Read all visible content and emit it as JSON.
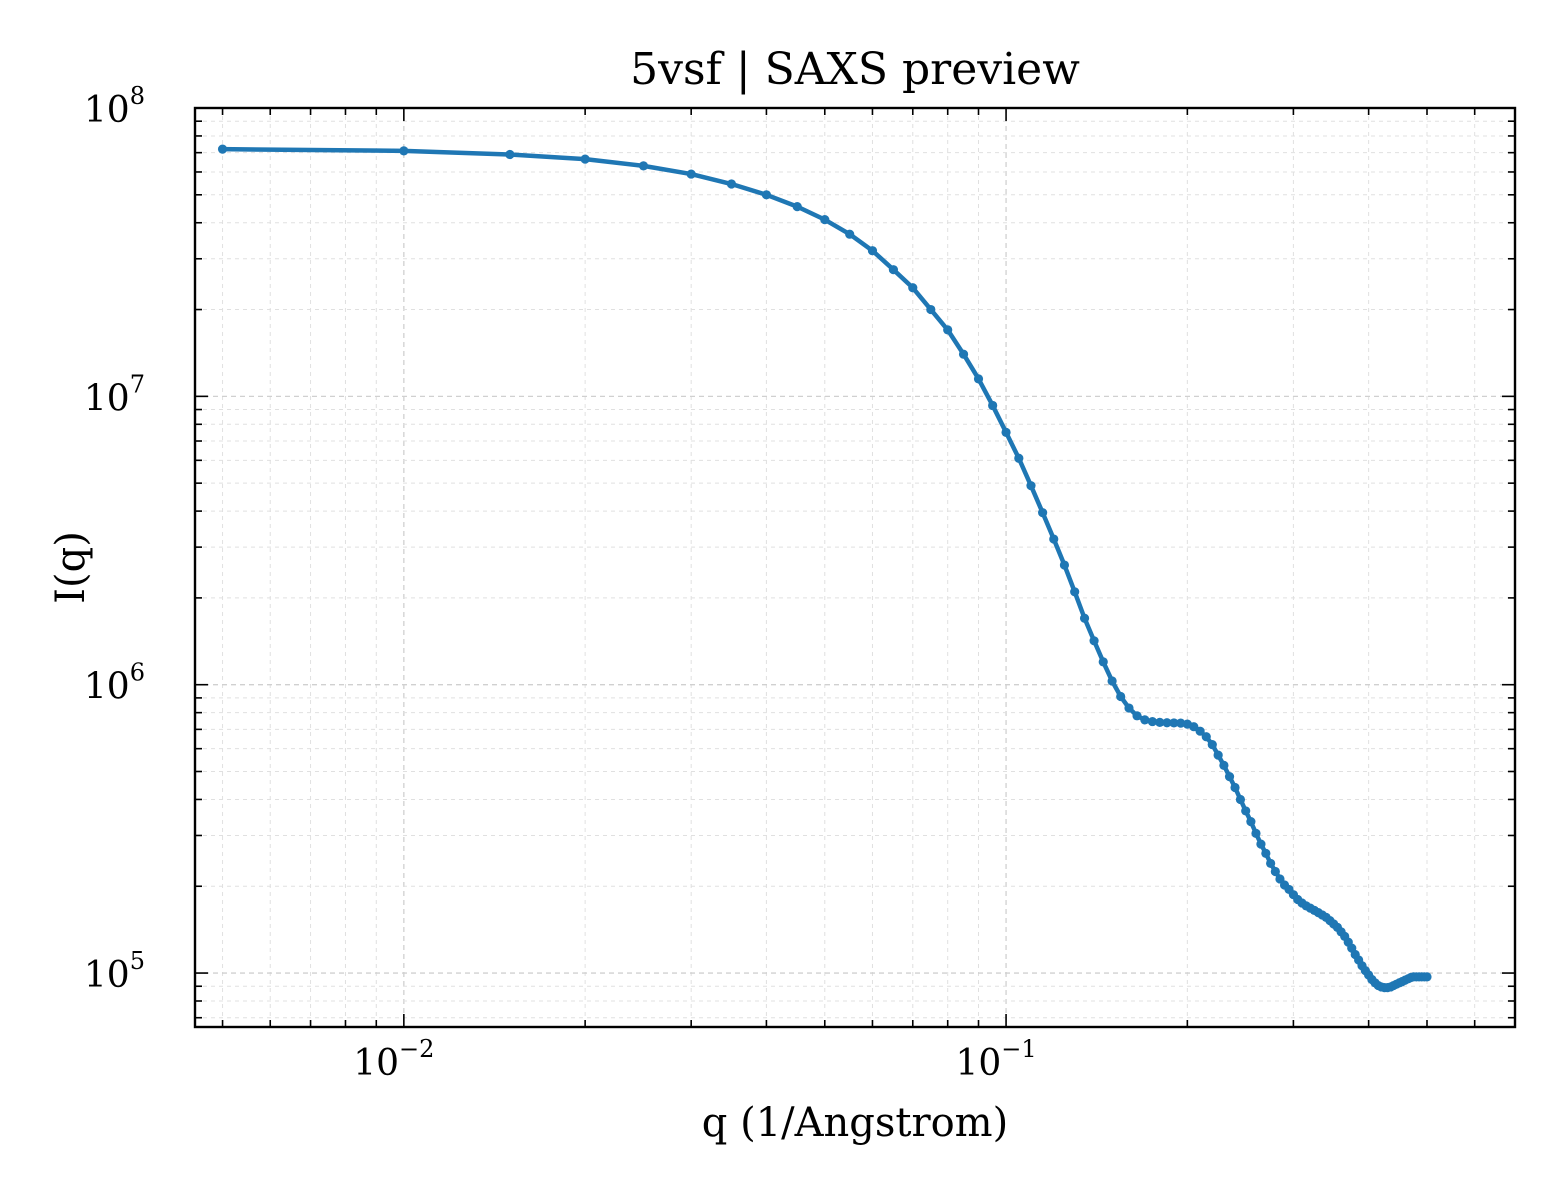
{
  "chart_data": {
    "type": "line",
    "title": "5vsf | SAXS preview",
    "xlabel": "q (1/Angstrom)",
    "ylabel": "I(q)",
    "xscale": "log",
    "yscale": "log",
    "xlim": [
      0.0045,
      0.7
    ],
    "ylim": [
      65000,
      100000000
    ],
    "grid": true,
    "legend": "none",
    "line_color": "#1f77b4",
    "x_ticks": [
      {
        "value": 0.01,
        "base": "10",
        "exp": "−2"
      },
      {
        "value": 0.1,
        "base": "10",
        "exp": "−1"
      }
    ],
    "y_ticks": [
      {
        "value": 100000,
        "base": "10",
        "exp": "5"
      },
      {
        "value": 1000000,
        "base": "10",
        "exp": "6"
      },
      {
        "value": 10000000,
        "base": "10",
        "exp": "7"
      },
      {
        "value": 100000000,
        "base": "10",
        "exp": "8"
      }
    ],
    "series": [
      {
        "x": [
          0.005,
          0.01,
          0.015,
          0.02,
          0.025,
          0.03,
          0.035,
          0.04,
          0.045,
          0.05,
          0.055,
          0.06,
          0.065,
          0.07,
          0.075,
          0.08,
          0.085,
          0.09,
          0.095,
          0.1,
          0.105,
          0.11,
          0.115,
          0.12,
          0.125,
          0.13,
          0.135,
          0.14,
          0.145,
          0.15,
          0.155,
          0.16,
          0.165,
          0.17,
          0.175,
          0.18,
          0.185,
          0.19,
          0.195,
          0.2,
          0.205,
          0.21,
          0.215,
          0.22,
          0.225,
          0.23,
          0.235,
          0.24,
          0.245,
          0.25,
          0.255,
          0.26,
          0.265,
          0.27,
          0.275,
          0.28,
          0.285,
          0.29,
          0.295,
          0.3,
          0.305,
          0.31,
          0.315,
          0.32,
          0.325,
          0.33,
          0.335,
          0.34,
          0.345,
          0.35,
          0.355,
          0.36,
          0.365,
          0.37,
          0.375,
          0.38,
          0.385,
          0.39,
          0.395,
          0.4,
          0.405,
          0.41,
          0.415,
          0.42,
          0.425,
          0.43,
          0.435,
          0.44,
          0.445,
          0.45,
          0.455,
          0.46,
          0.465,
          0.47,
          0.475,
          0.48,
          0.485,
          0.49,
          0.495,
          0.5
        ],
        "y": [
          72000000,
          71000000,
          69000000,
          66500000,
          63000000,
          59000000,
          54500000,
          50000000,
          45500000,
          41000000,
          36500000,
          32000000,
          27500000,
          23800000,
          20000000,
          17000000,
          14000000,
          11500000,
          9300000,
          7500000,
          6100000,
          4900000,
          3950000,
          3200000,
          2600000,
          2100000,
          1700000,
          1420000,
          1200000,
          1030000,
          910000,
          830000,
          780000,
          755000,
          745000,
          740000,
          738000,
          737000,
          736000,
          730000,
          715000,
          690000,
          660000,
          620000,
          570000,
          525000,
          480000,
          440000,
          400000,
          365000,
          335000,
          305000,
          280000,
          260000,
          240000,
          225000,
          212000,
          202000,
          195000,
          187000,
          180000,
          175000,
          171000,
          168000,
          165000,
          162000,
          159000,
          156000,
          152000,
          148000,
          144000,
          139000,
          134000,
          128000,
          122000,
          116000,
          111000,
          106000,
          102000,
          98500,
          95000,
          92500,
          90500,
          89500,
          89000,
          89000,
          89500,
          90500,
          91500,
          92500,
          93500,
          94500,
          95500,
          96500,
          97000,
          97000,
          97000,
          97000,
          97000,
          97000
        ]
      }
    ]
  }
}
